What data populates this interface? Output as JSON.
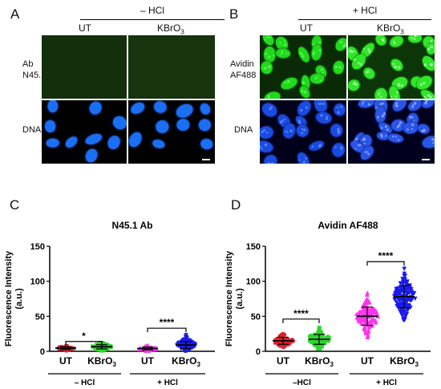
{
  "panels": {
    "A": {
      "letter": "A",
      "group": "– HCl",
      "cols": [
        "UT",
        "KBrO3"
      ],
      "rows": [
        "Ab\nN45.1",
        "DNA"
      ]
    },
    "B": {
      "letter": "B",
      "group": "+ HCl",
      "cols": [
        "UT",
        "KBrO3"
      ],
      "rows": [
        "Avidin\nAF488",
        "DNA"
      ]
    },
    "C": {
      "letter": "C"
    },
    "D": {
      "letter": "D"
    }
  },
  "colors": {
    "ut": "#e0202a",
    "kbro3": "#2cd62c",
    "hcl_ut": "#ff33ee",
    "hcl_kbro3": "#1a1aee",
    "green_dim": "#16340f",
    "nucleus_blue": "#1a6cf0"
  },
  "chart_data": [
    {
      "type": "scatter",
      "title": "N45.1 Ab",
      "ylabel": "Fluorescence Intensity\n(a.u.)",
      "ylim": [
        0,
        150
      ],
      "yticks": [
        0,
        50,
        100,
        150
      ],
      "categories": [
        "UT",
        "KBrO3",
        "UT",
        "KBrO3"
      ],
      "groups": [
        {
          "label": "– HCl",
          "span": [
            0,
            1
          ]
        },
        {
          "label": "+ HCl",
          "span": [
            2,
            3
          ]
        }
      ],
      "series": [
        {
          "mean": 4.5,
          "sd": 2,
          "min": 1,
          "max": 8,
          "marker": "circle",
          "color": "#e0202a"
        },
        {
          "mean": 6.5,
          "sd": 3,
          "min": 1,
          "max": 12,
          "marker": "square",
          "color": "#2cd62c"
        },
        {
          "mean": 4.0,
          "sd": 2,
          "min": 0.5,
          "max": 8,
          "marker": "triangle-up",
          "color": "#ff33ee"
        },
        {
          "mean": 9.0,
          "sd": 5,
          "min": 1,
          "max": 24,
          "marker": "triangle-down",
          "color": "#1a1aee"
        }
      ],
      "significance": [
        {
          "pair": [
            0,
            1
          ],
          "label": "*",
          "y": 14
        },
        {
          "pair": [
            2,
            3
          ],
          "label": "****",
          "y": 33
        }
      ]
    },
    {
      "type": "scatter",
      "title": "Avidin AF488",
      "ylabel": "Fluorescence Intensity\n(a.u.)",
      "ylim": [
        0,
        150
      ],
      "yticks": [
        0,
        50,
        100,
        150
      ],
      "categories": [
        "UT",
        "KBrO3",
        "UT",
        "KBrO3"
      ],
      "groups": [
        {
          "label": "–HCl",
          "span": [
            0,
            1
          ]
        },
        {
          "label": "+ HCl",
          "span": [
            2,
            3
          ]
        }
      ],
      "series": [
        {
          "mean": 15,
          "sd": 5,
          "min": 5,
          "max": 25,
          "marker": "circle",
          "color": "#e0202a"
        },
        {
          "mean": 17,
          "sd": 7,
          "min": 4,
          "max": 35,
          "marker": "square",
          "color": "#2cd62c"
        },
        {
          "mean": 50,
          "sd": 13,
          "min": 20,
          "max": 85,
          "marker": "triangle-up",
          "color": "#ff33ee"
        },
        {
          "mean": 78,
          "sd": 16,
          "min": 45,
          "max": 118,
          "marker": "triangle-down",
          "color": "#1a1aee"
        }
      ],
      "significance": [
        {
          "pair": [
            0,
            1
          ],
          "label": "****",
          "y": 46
        },
        {
          "pair": [
            2,
            3
          ],
          "label": "****",
          "y": 128
        }
      ]
    }
  ]
}
